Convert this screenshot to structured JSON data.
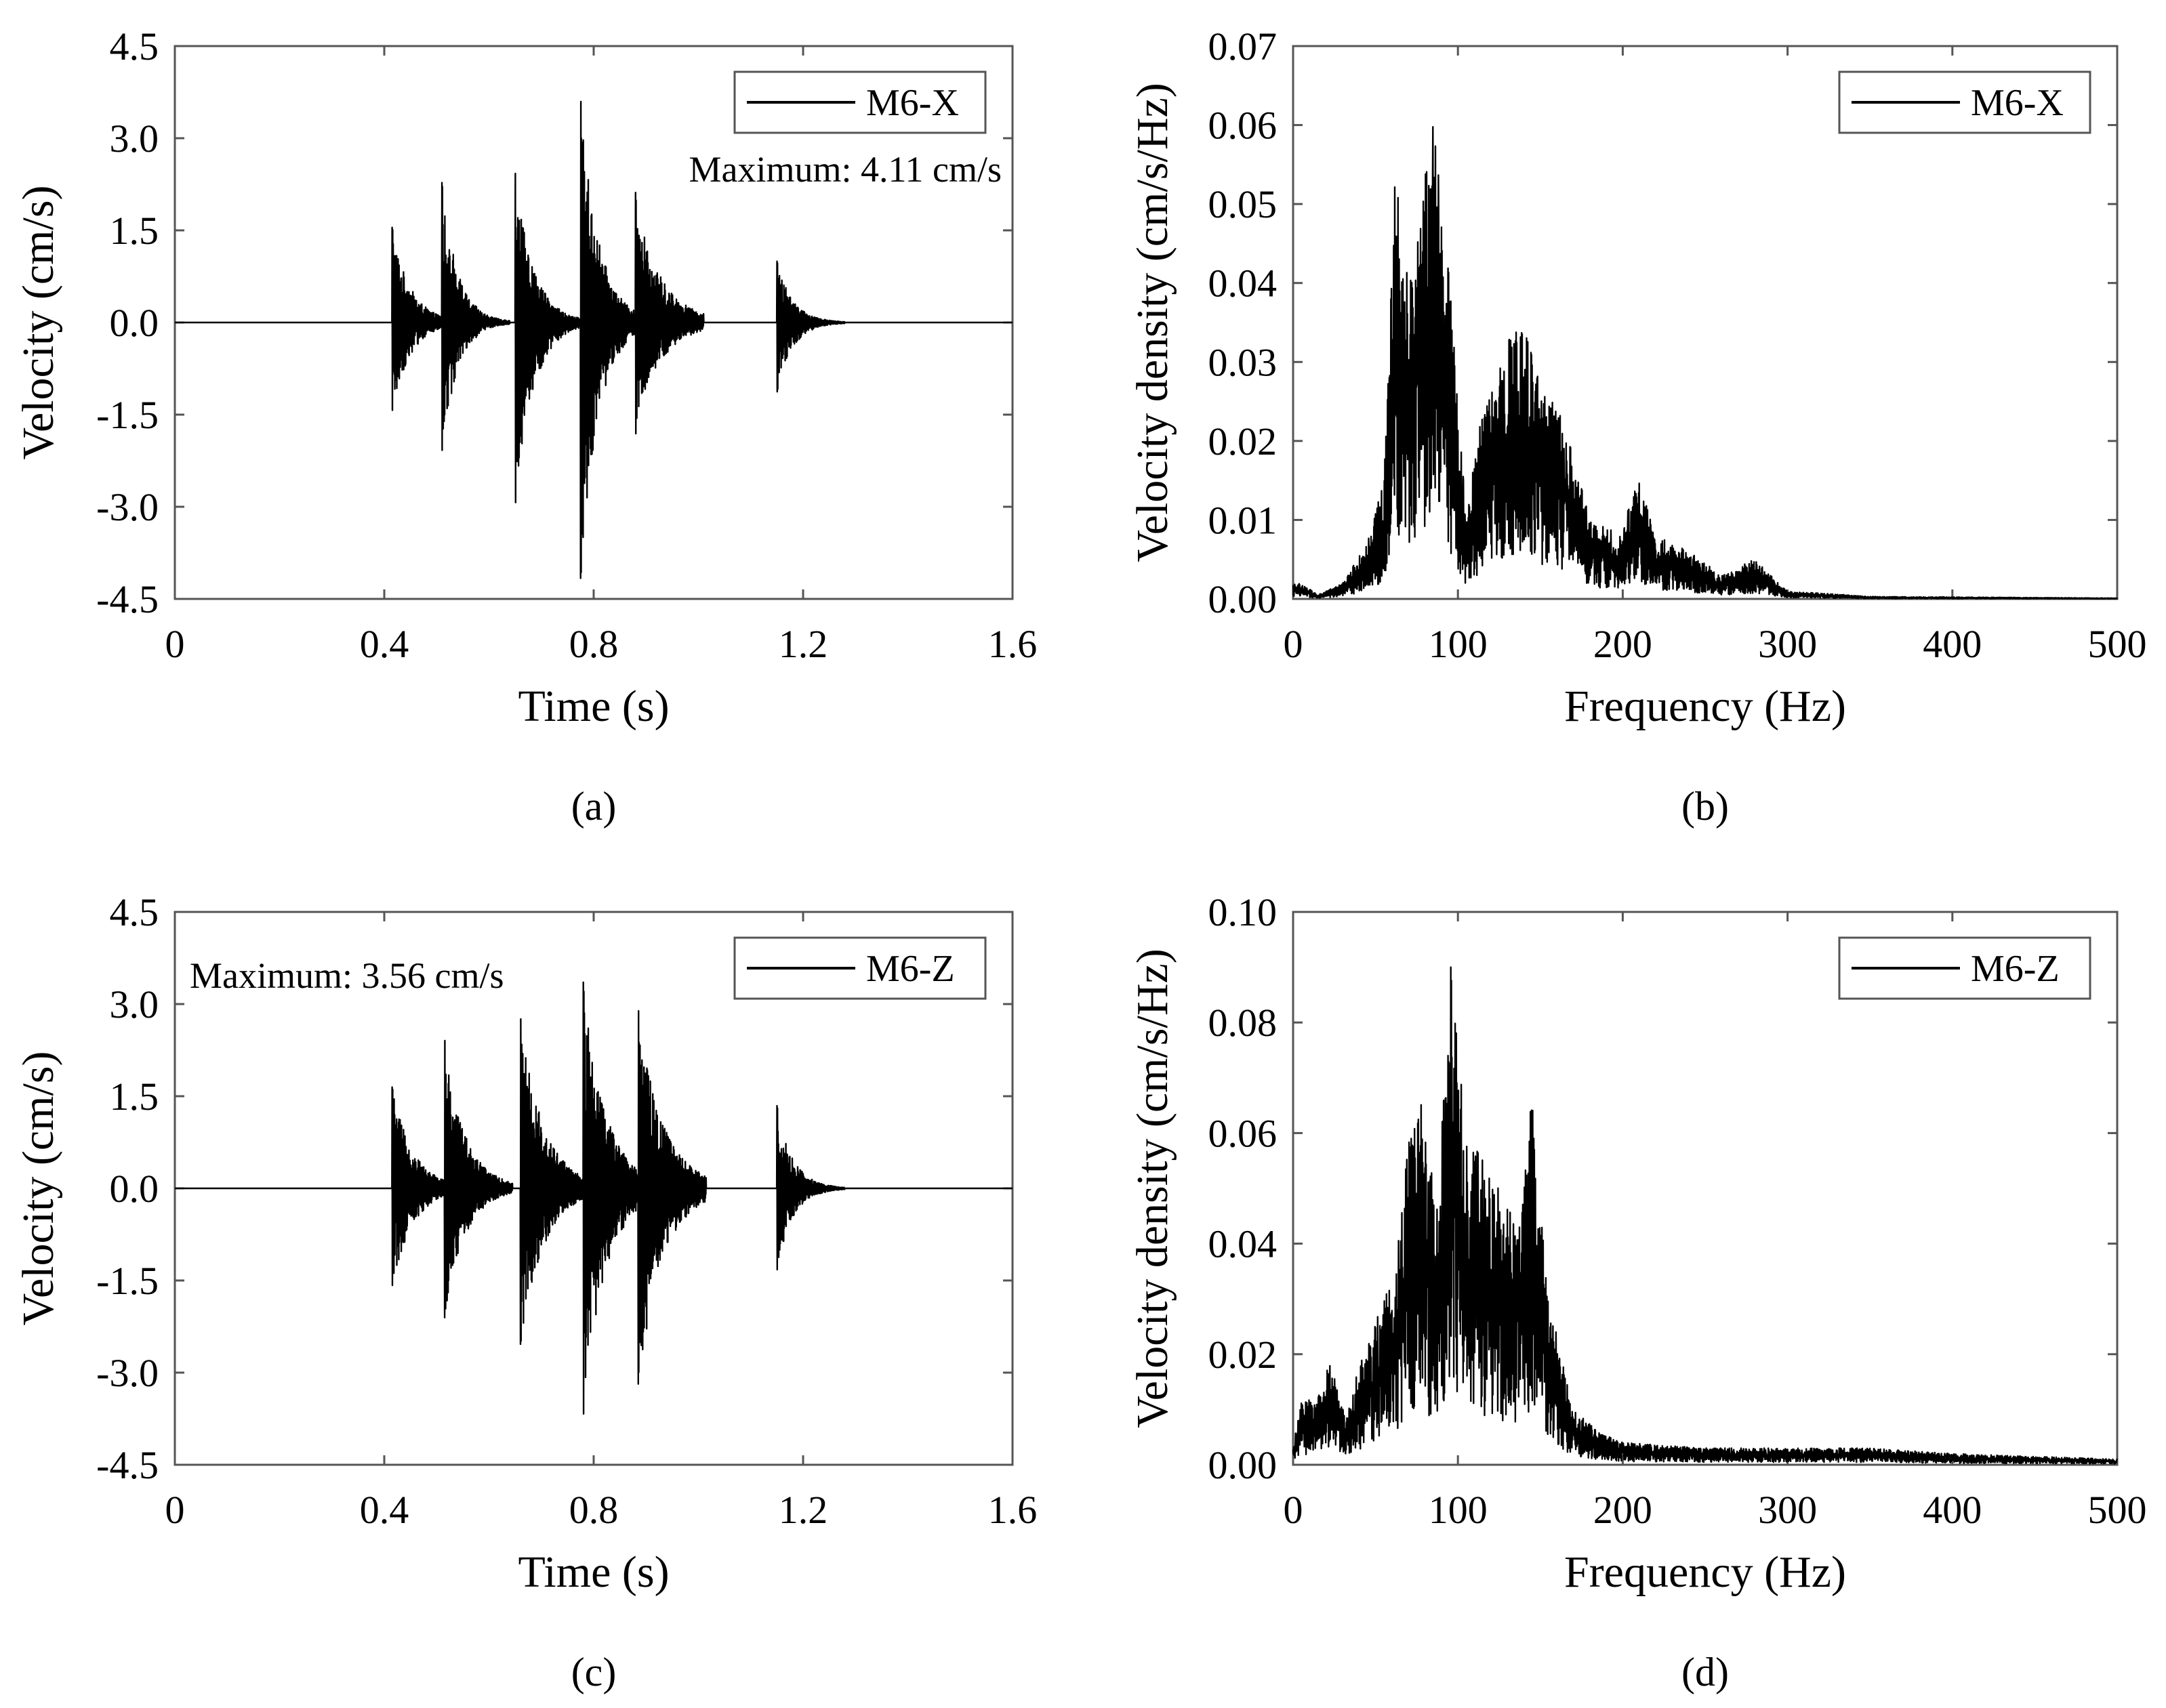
{
  "chart_data": [
    {
      "id": "a",
      "type": "line",
      "caption": "(a)",
      "xlabel": "Time (s)",
      "ylabel": "Velocity (cm/s)",
      "xlim": [
        0,
        1.6
      ],
      "ylim": [
        -4.5,
        4.5
      ],
      "xticks": [
        "0",
        "0.4",
        "0.8",
        "1.2",
        "1.6"
      ],
      "yticks": [
        "-4.5",
        "-3.0",
        "-1.5",
        "0.0",
        "1.5",
        "3.0",
        "4.5"
      ],
      "legend": "M6-X",
      "legend_position": "top-right",
      "annotation": "Maximum: 4.11 cm/s",
      "annotation_position": "top-right",
      "series": [
        {
          "name": "M6-X",
          "bursts": [
            {
              "t": 0.415,
              "pos": 1.55,
              "neg": -1.45,
              "decay": 0.035,
              "floor": 0.28
            },
            {
              "t": 0.51,
              "pos": 2.2,
              "neg": -2.05,
              "decay": 0.03,
              "floor": 0.3
            },
            {
              "t": 0.65,
              "pos": 2.45,
              "neg": -3.0,
              "decay": 0.035,
              "floor": 0.25
            },
            {
              "t": 0.775,
              "pos": 3.6,
              "neg": -4.11,
              "decay": 0.035,
              "floor": 0.25
            },
            {
              "t": 0.88,
              "pos": 1.95,
              "neg": -1.7,
              "decay": 0.05,
              "floor": 0.0
            },
            {
              "t": 1.15,
              "pos": 1.0,
              "neg": -1.15,
              "decay": 0.03,
              "floor": 0.0
            }
          ]
        }
      ]
    },
    {
      "id": "b",
      "type": "line",
      "caption": "(b)",
      "xlabel": "Frequency (Hz)",
      "ylabel": "Velocity density (cm/s/Hz)",
      "xlim": [
        0,
        500
      ],
      "ylim": [
        0,
        0.07
      ],
      "xticks": [
        "0",
        "100",
        "200",
        "300",
        "400",
        "500"
      ],
      "yticks": [
        "0.00",
        "0.01",
        "0.02",
        "0.03",
        "0.04",
        "0.05",
        "0.06",
        "0.07"
      ],
      "legend": "M6-X",
      "legend_position": "top-right",
      "series": [
        {
          "name": "M6-X",
          "envelope": [
            [
              0,
              0.002
            ],
            [
              5,
              0.002
            ],
            [
              15,
              0.0005
            ],
            [
              30,
              0.002
            ],
            [
              45,
              0.007
            ],
            [
              55,
              0.015
            ],
            [
              62,
              0.054
            ],
            [
              70,
              0.04
            ],
            [
              85,
              0.06
            ],
            [
              95,
              0.04
            ],
            [
              105,
              0.01
            ],
            [
              115,
              0.025
            ],
            [
              125,
              0.03
            ],
            [
              138,
              0.036
            ],
            [
              150,
              0.028
            ],
            [
              165,
              0.022
            ],
            [
              180,
              0.01
            ],
            [
              200,
              0.008
            ],
            [
              208,
              0.016
            ],
            [
              220,
              0.008
            ],
            [
              240,
              0.006
            ],
            [
              260,
              0.003
            ],
            [
              280,
              0.005
            ],
            [
              300,
              0.001
            ],
            [
              350,
              0.0003
            ],
            [
              500,
              0.0001
            ]
          ]
        }
      ]
    },
    {
      "id": "c",
      "type": "line",
      "caption": "(c)",
      "xlabel": "Time (s)",
      "ylabel": "Velocity (cm/s)",
      "xlim": [
        0,
        1.6
      ],
      "ylim": [
        -4.5,
        4.5
      ],
      "xticks": [
        "0",
        "0.4",
        "0.8",
        "1.2",
        "1.6"
      ],
      "yticks": [
        "-4.5",
        "-3.0",
        "-1.5",
        "0.0",
        "1.5",
        "3.0",
        "4.5"
      ],
      "legend": "M6-Z",
      "legend_position": "top-right",
      "annotation": "Maximum: 3.56 cm/s",
      "annotation_position": "top-left",
      "series": [
        {
          "name": "M6-Z",
          "bursts": [
            {
              "t": 0.415,
              "pos": 1.65,
              "neg": -1.6,
              "decay": 0.04,
              "floor": 0.3
            },
            {
              "t": 0.515,
              "pos": 2.4,
              "neg": -2.05,
              "decay": 0.04,
              "floor": 0.3
            },
            {
              "t": 0.66,
              "pos": 2.8,
              "neg": -2.55,
              "decay": 0.045,
              "floor": 0.3
            },
            {
              "t": 0.78,
              "pos": 3.2,
              "neg": -3.56,
              "decay": 0.045,
              "floor": 0.3
            },
            {
              "t": 0.885,
              "pos": 2.7,
              "neg": -2.9,
              "decay": 0.05,
              "floor": 0.0
            },
            {
              "t": 1.15,
              "pos": 1.35,
              "neg": -1.35,
              "decay": 0.03,
              "floor": 0.0
            }
          ]
        }
      ]
    },
    {
      "id": "d",
      "type": "line",
      "caption": "(d)",
      "xlabel": "Frequency (Hz)",
      "ylabel": "Velocity density (cm/s/Hz)",
      "xlim": [
        0,
        500
      ],
      "ylim": [
        0,
        0.1
      ],
      "xticks": [
        "0",
        "100",
        "200",
        "300",
        "400",
        "500"
      ],
      "yticks": [
        "0.00",
        "0.02",
        "0.04",
        "0.06",
        "0.08",
        "0.10"
      ],
      "legend": "M6-Z",
      "legend_position": "top-right",
      "series": [
        {
          "name": "M6-Z",
          "envelope": [
            [
              0,
              0.003
            ],
            [
              5,
              0.012
            ],
            [
              15,
              0.012
            ],
            [
              22,
              0.019
            ],
            [
              32,
              0.008
            ],
            [
              40,
              0.018
            ],
            [
              52,
              0.028
            ],
            [
              62,
              0.035
            ],
            [
              70,
              0.063
            ],
            [
              78,
              0.066
            ],
            [
              88,
              0.048
            ],
            [
              96,
              0.093
            ],
            [
              105,
              0.06
            ],
            [
              115,
              0.055
            ],
            [
              125,
              0.05
            ],
            [
              138,
              0.045
            ],
            [
              145,
              0.067
            ],
            [
              155,
              0.03
            ],
            [
              170,
              0.01
            ],
            [
              185,
              0.006
            ],
            [
              200,
              0.004
            ],
            [
              250,
              0.003
            ],
            [
              300,
              0.003
            ],
            [
              350,
              0.003
            ],
            [
              400,
              0.002
            ],
            [
              500,
              0.001
            ]
          ]
        }
      ]
    }
  ]
}
